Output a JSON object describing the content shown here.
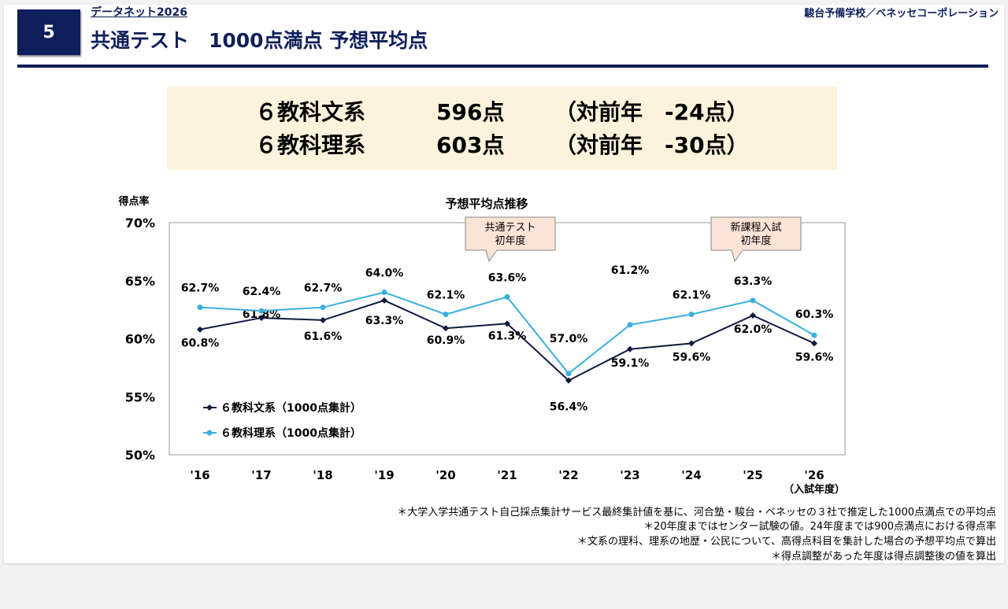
{
  "header": {
    "number": "5",
    "subtitle": "データネット2026",
    "title": "共通テスト　1000点満点 予想平均点",
    "org": "駿台予備学校／ベネッセコーポレーション"
  },
  "banner": [
    {
      "label": "６教科文系",
      "score": "596点",
      "diff": "（対前年　-24点）"
    },
    {
      "label": "６教科理系",
      "score": "603点",
      "diff": "（対前年　-30点）"
    }
  ],
  "chart_data": {
    "type": "line",
    "title": "予想平均点推移",
    "ylabel": "得点率",
    "xlabel": "（入試年度）",
    "ylim": [
      50,
      70
    ],
    "yticks": [
      "50%",
      "55%",
      "60%",
      "65%",
      "70%"
    ],
    "categories": [
      "'16",
      "'17",
      "'18",
      "'19",
      "'20",
      "'21",
      "'22",
      "'23",
      "'24",
      "'25",
      "'26"
    ],
    "series": [
      {
        "name": "６教科文系（1000点集計）",
        "color": "#0e1a3f",
        "values": [
          60.8,
          61.8,
          61.6,
          63.3,
          60.9,
          61.3,
          56.4,
          59.1,
          59.6,
          62.0,
          59.6
        ],
        "labels": [
          "60.8%",
          "61.8%",
          "61.6%",
          "63.3%",
          "60.9%",
          "61.3%",
          "56.4%",
          "59.1%",
          "59.6%",
          "62.0%",
          "59.6%"
        ]
      },
      {
        "name": "６教科理系（1000点集計）",
        "color": "#3ab0dc",
        "values": [
          62.7,
          62.4,
          62.7,
          64.0,
          62.1,
          63.6,
          57.0,
          61.2,
          62.1,
          63.3,
          60.3
        ],
        "labels": [
          "62.7%",
          "62.4%",
          "62.7%",
          "64.0%",
          "62.1%",
          "63.6%",
          "57.0%",
          "61.2%",
          "62.1%",
          "63.3%",
          "60.3%"
        ]
      }
    ],
    "annotations": [
      {
        "category": "'21",
        "lines": [
          "共通テスト",
          "初年度"
        ]
      },
      {
        "category": "'25",
        "lines": [
          "新課程入試",
          "初年度"
        ]
      }
    ],
    "legend": "bottom-left inside"
  },
  "footnotes": [
    "＊大学入学共通テスト自己採点集計サービス最終集計値を基に、河合塾・駿台・ベネッセの３社で推定した1000点満点での平均点",
    "＊20年度まではセンター試験の値。24年度までは900点満点における得点率",
    "＊文系の理科、理系の地歴・公民について、高得点科目を集計した場合の予想平均点で算出",
    "＊得点調整があった年度は得点調整後の値を算出"
  ]
}
